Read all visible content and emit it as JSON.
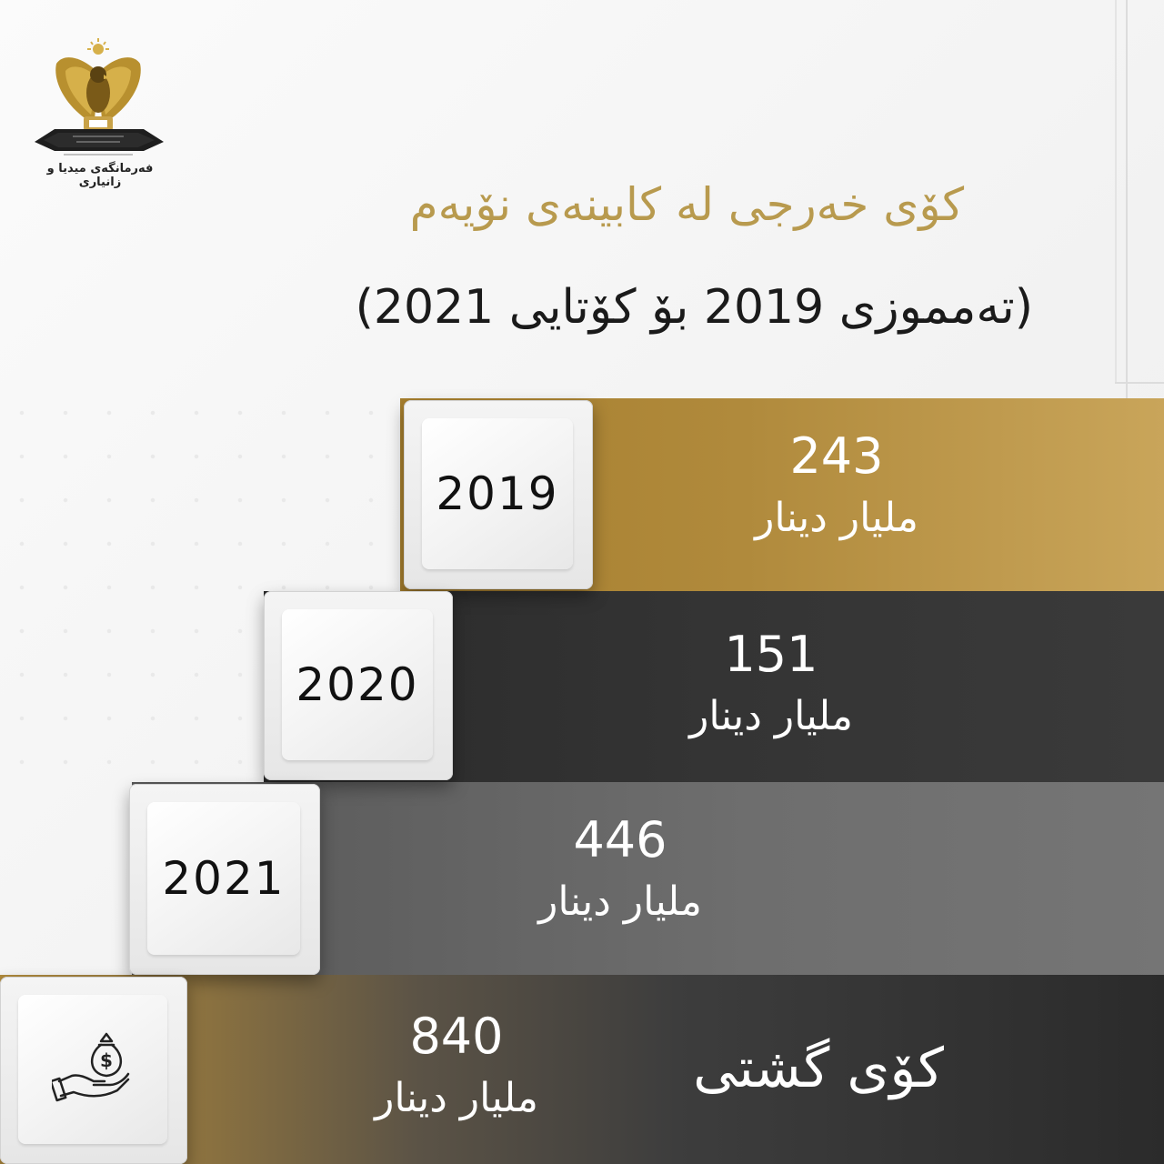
{
  "header": {
    "logo_caption": "فەرمانگەی میدیا و زانیاری",
    "title": "کۆی خەرجی لە کابینەی نۆیەم",
    "subtitle": "(تەمموزی 2019 بۆ کۆتایی 2021)"
  },
  "rows": [
    {
      "year": "2019",
      "value": "243",
      "unit": "مليار دينار"
    },
    {
      "year": "2020",
      "value": "151",
      "unit": "مليار دينار"
    },
    {
      "year": "2021",
      "value": "446",
      "unit": "مليار دينار"
    }
  ],
  "total": {
    "label": "کۆی گشتی",
    "value": "840",
    "unit": "مليار دينار",
    "icon": "money-bag-hand-icon"
  },
  "colors": {
    "gold": "#b08a3c",
    "dark": "#333333",
    "gray": "#6e6e6e",
    "title_gold": "#b89a4e"
  }
}
